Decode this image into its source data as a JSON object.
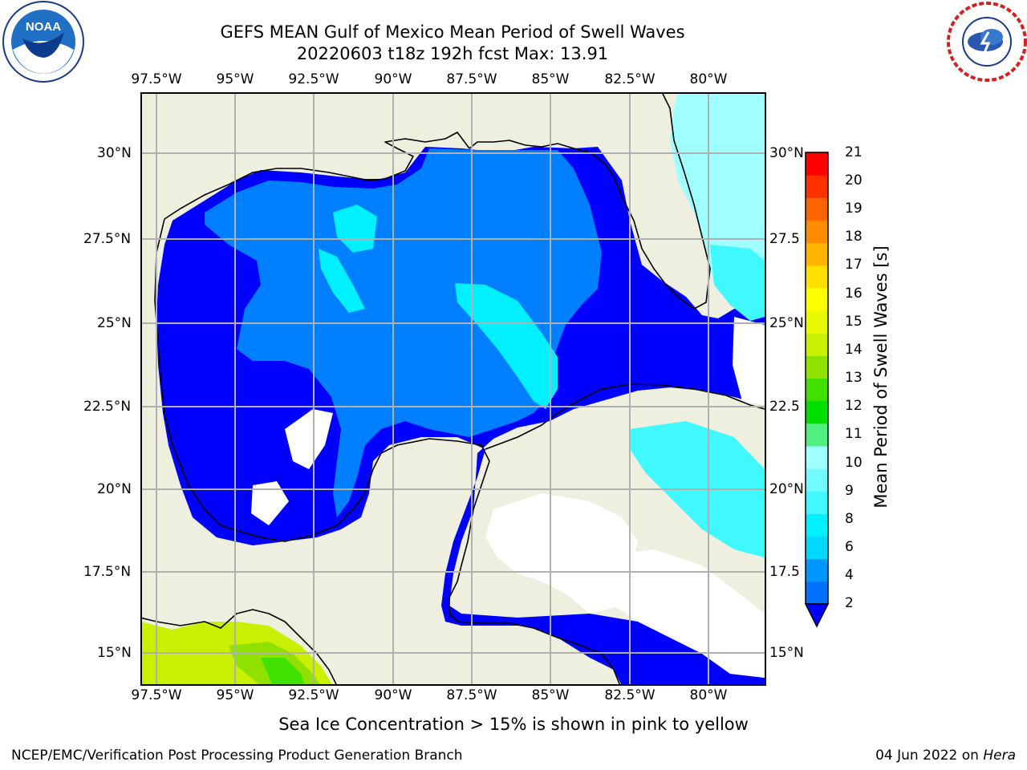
{
  "title_line1": "GEFS MEAN Gulf of Mexico Mean Period of Swell Waves",
  "title_line2": "20220603 t18z 192h fcst   Max: 13.91",
  "logos": {
    "left": "noaa-logo",
    "right": "nws-logo"
  },
  "lon_ticks": [
    "97.5°W",
    "95°W",
    "92.5°W",
    "90°W",
    "87.5°W",
    "85°W",
    "82.5°W",
    "80°W"
  ],
  "lon_values": [
    -97.5,
    -95,
    -92.5,
    -90,
    -87.5,
    -85,
    -82.5,
    -80
  ],
  "lat_ticks_left": [
    "30°N",
    "27.5°N",
    "25°N",
    "22.5°N",
    "20°N",
    "17.5°N",
    "15°N"
  ],
  "lat_ticks_right": [
    "30°N",
    "27.5",
    "25°N",
    "22.5",
    "20°N",
    "17.5",
    "15°N"
  ],
  "lat_values": [
    30,
    27.5,
    25,
    22.5,
    20,
    17.5,
    15
  ],
  "map_extent": {
    "lon": [
      -98,
      -78.2
    ],
    "lat": [
      14.1,
      31.7
    ]
  },
  "colorbar": {
    "label": "Mean Period of Swell Waves [s]",
    "ticks": [
      "21",
      "20",
      "19",
      "18",
      "17",
      "16",
      "15",
      "14",
      "13",
      "12",
      "11",
      "10",
      "9",
      "8",
      "6",
      "4",
      "2"
    ],
    "levels": [
      2,
      3,
      4,
      5,
      6,
      7,
      8,
      9,
      10,
      11,
      12,
      13,
      14,
      15,
      16,
      17,
      18,
      19,
      20,
      21
    ],
    "colors": [
      "#0070ff",
      "#0096ff",
      "#00d8ff",
      "#00f0ff",
      "#40f8ff",
      "#70fcff",
      "#a0ffff",
      "#50f080",
      "#00e000",
      "#40e000",
      "#90e000",
      "#c8f000",
      "#e8f800",
      "#ffff00",
      "#ffe000",
      "#ffb400",
      "#ff8c00",
      "#ff6400",
      "#ff3000",
      "#ff0000"
    ],
    "under_color": "#0000ff"
  },
  "colors": {
    "land": "#efefdf",
    "grid": "#b0b0b0",
    "swell_2": "#0000ff",
    "swell_4": "#0080ff",
    "swell_6": "#00f0ff",
    "swell_9": "#a0ffff"
  },
  "note": "Sea Ice Concentration > 15% is shown in pink to yellow",
  "footer_left": "NCEP/EMC/Verification Post Processing Product Generation Branch",
  "footer_right_date": "04 Jun 2022 on",
  "footer_right_host": "Hera"
}
